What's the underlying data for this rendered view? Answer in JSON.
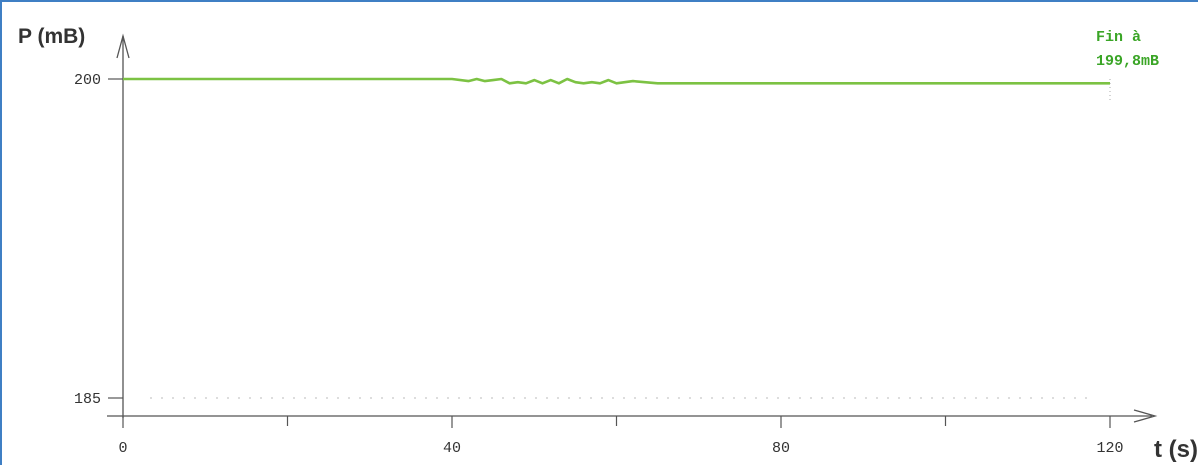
{
  "chart_data": {
    "type": "line",
    "ylabel": "P (mB)",
    "xlabel": "t (s)",
    "xlim": [
      0,
      120
    ],
    "ylim": [
      185,
      200
    ],
    "xticks_labeled": [
      0,
      40,
      80,
      120
    ],
    "xticks_minor": [
      20,
      60,
      100
    ],
    "yticks": [
      185,
      200
    ],
    "annotation": [
      "Fin à",
      "199,8mB"
    ],
    "series": [
      {
        "color": "#7cc243",
        "x": [
          0,
          10,
          20,
          30,
          38,
          40,
          42,
          43,
          44,
          45,
          46,
          47,
          48,
          49,
          50,
          51,
          52,
          53,
          54,
          55,
          56,
          57,
          58,
          59,
          60,
          61,
          62,
          65,
          70,
          80,
          90,
          100,
          110,
          120
        ],
        "y": [
          200,
          200,
          200,
          200,
          200,
          200,
          199.9,
          200,
          199.9,
          199.95,
          200,
          199.8,
          199.85,
          199.8,
          199.95,
          199.8,
          199.95,
          199.8,
          200,
          199.85,
          199.8,
          199.85,
          199.8,
          199.95,
          199.8,
          199.85,
          199.9,
          199.8,
          199.8,
          199.8,
          199.8,
          199.8,
          199.8,
          199.8
        ]
      }
    ]
  }
}
